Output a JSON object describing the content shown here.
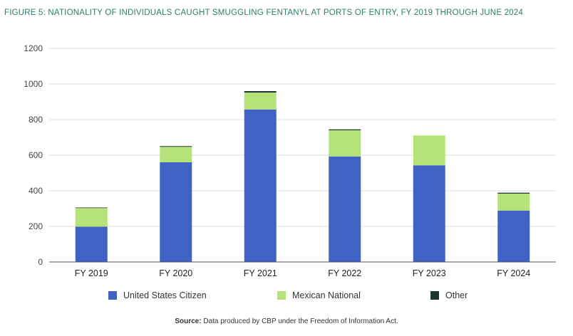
{
  "title": "FIGURE 5: NATIONALITY OF INDIVIDUALS CAUGHT SMUGGLING FENTANYL AT PORTS OF ENTRY, FY 2019 THROUGH JUNE 2024",
  "source": {
    "label": "Source:",
    "text": "Data produced by CBP under the Freedom of Information Act."
  },
  "colors": {
    "us_citizen": "#4062c4",
    "mexican_national": "#b5e37a",
    "other": "#1f3531",
    "grid": "#dcdcdc",
    "axis": "#555555",
    "title": "#2f7c6c"
  },
  "chart_data": {
    "type": "bar",
    "stacked": true,
    "title": "FIGURE 5: NATIONALITY OF INDIVIDUALS CAUGHT SMUGGLING FENTANYL AT PORTS OF ENTRY, FY 2019 THROUGH JUNE 2024",
    "xlabel": "",
    "ylabel": "",
    "ylim": [
      0,
      1200
    ],
    "yticks": [
      0,
      200,
      400,
      600,
      800,
      1000,
      1200
    ],
    "grid": true,
    "legend_position": "bottom",
    "categories": [
      "FY 2019",
      "FY 2020",
      "FY 2021",
      "FY 2022",
      "FY 2023",
      "FY 2024"
    ],
    "series": [
      {
        "name": "United States Citizen",
        "values": [
          198,
          560,
          857,
          593,
          543,
          289
        ]
      },
      {
        "name": "Mexican National",
        "values": [
          105,
          87,
          95,
          147,
          168,
          95
        ]
      },
      {
        "name": "Other",
        "values": [
          3,
          4,
          8,
          5,
          0,
          5
        ]
      }
    ]
  }
}
